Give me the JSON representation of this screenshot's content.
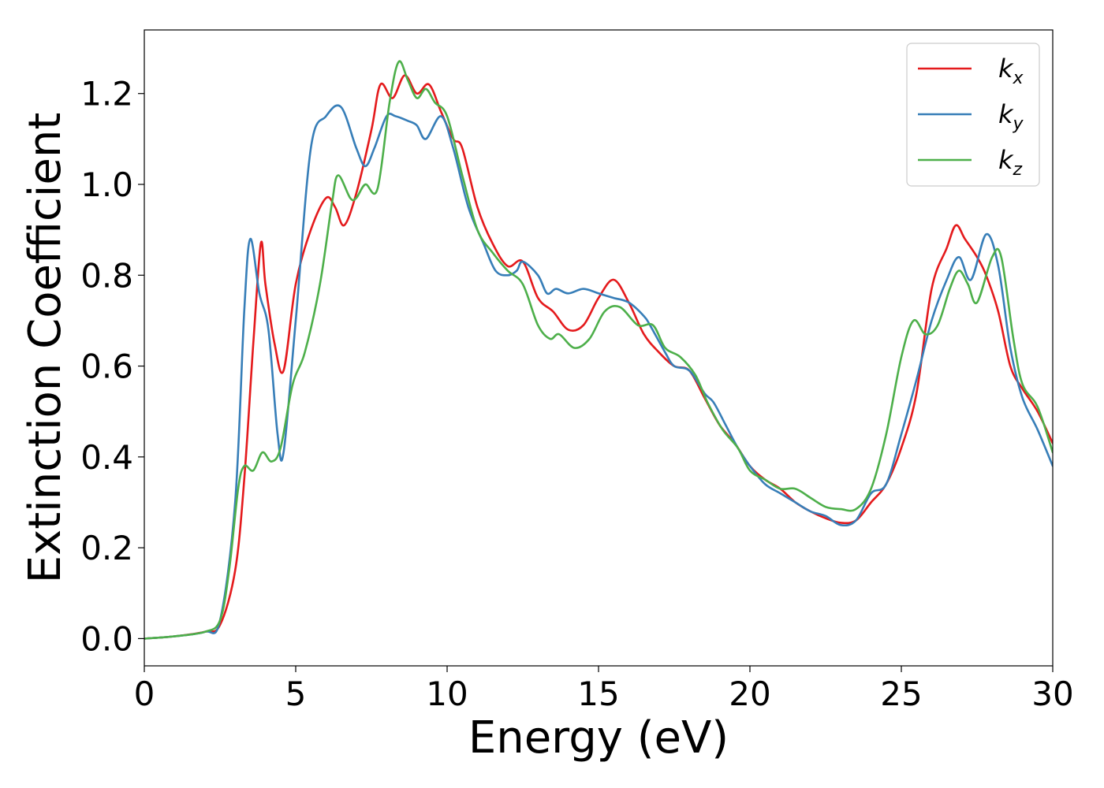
{
  "chart_data": {
    "type": "line",
    "title": "",
    "xlabel": "Energy (eV)",
    "ylabel": "Extinction Coefficient",
    "xlim": [
      0,
      30
    ],
    "ylim": [
      -0.06,
      1.34
    ],
    "xticks": [
      "0",
      "5",
      "10",
      "15",
      "20",
      "25",
      "30"
    ],
    "yticks": [
      "0.0",
      "0.2",
      "0.4",
      "0.6",
      "0.8",
      "1.0",
      "1.2"
    ],
    "grid": false,
    "legend_position": "top-right",
    "series": [
      {
        "name": "k",
        "subscript": "x",
        "color": "#e41a1c",
        "points": [
          [
            0,
            0
          ],
          [
            1,
            0.005
          ],
          [
            2,
            0.015
          ],
          [
            2.5,
            0.03
          ],
          [
            3,
            0.15
          ],
          [
            3.3,
            0.35
          ],
          [
            3.6,
            0.65
          ],
          [
            3.85,
            0.87
          ],
          [
            4.0,
            0.78
          ],
          [
            4.3,
            0.65
          ],
          [
            4.6,
            0.59
          ],
          [
            5.0,
            0.78
          ],
          [
            5.5,
            0.9
          ],
          [
            6.0,
            0.97
          ],
          [
            6.3,
            0.95
          ],
          [
            6.6,
            0.91
          ],
          [
            7.0,
            0.98
          ],
          [
            7.5,
            1.12
          ],
          [
            7.8,
            1.22
          ],
          [
            8.2,
            1.19
          ],
          [
            8.6,
            1.24
          ],
          [
            9.0,
            1.2
          ],
          [
            9.4,
            1.22
          ],
          [
            9.8,
            1.16
          ],
          [
            10.2,
            1.1
          ],
          [
            10.5,
            1.08
          ],
          [
            11.0,
            0.95
          ],
          [
            11.5,
            0.87
          ],
          [
            12.0,
            0.82
          ],
          [
            12.5,
            0.83
          ],
          [
            13.0,
            0.75
          ],
          [
            13.5,
            0.72
          ],
          [
            14.0,
            0.68
          ],
          [
            14.5,
            0.69
          ],
          [
            15.0,
            0.75
          ],
          [
            15.5,
            0.79
          ],
          [
            16.0,
            0.74
          ],
          [
            16.5,
            0.67
          ],
          [
            17.0,
            0.63
          ],
          [
            17.5,
            0.6
          ],
          [
            18.0,
            0.59
          ],
          [
            18.5,
            0.53
          ],
          [
            19.0,
            0.47
          ],
          [
            19.5,
            0.43
          ],
          [
            20.0,
            0.38
          ],
          [
            20.5,
            0.35
          ],
          [
            21.0,
            0.33
          ],
          [
            21.5,
            0.3
          ],
          [
            22.0,
            0.28
          ],
          [
            22.5,
            0.265
          ],
          [
            23.0,
            0.255
          ],
          [
            23.5,
            0.26
          ],
          [
            24.0,
            0.3
          ],
          [
            24.5,
            0.34
          ],
          [
            25.0,
            0.42
          ],
          [
            25.5,
            0.54
          ],
          [
            26.0,
            0.77
          ],
          [
            26.5,
            0.86
          ],
          [
            26.8,
            0.91
          ],
          [
            27.1,
            0.88
          ],
          [
            27.5,
            0.84
          ],
          [
            27.8,
            0.8
          ],
          [
            28.2,
            0.72
          ],
          [
            28.6,
            0.6
          ],
          [
            29.0,
            0.55
          ],
          [
            29.5,
            0.5
          ],
          [
            30.0,
            0.43
          ]
        ]
      },
      {
        "name": "k",
        "subscript": "y",
        "color": "#377eb8",
        "points": [
          [
            0,
            0
          ],
          [
            1,
            0.005
          ],
          [
            2,
            0.015
          ],
          [
            2.5,
            0.04
          ],
          [
            3,
            0.3
          ],
          [
            3.3,
            0.72
          ],
          [
            3.5,
            0.88
          ],
          [
            3.8,
            0.76
          ],
          [
            4.1,
            0.68
          ],
          [
            4.4,
            0.45
          ],
          [
            4.6,
            0.41
          ],
          [
            5.0,
            0.7
          ],
          [
            5.5,
            1.08
          ],
          [
            6.0,
            1.15
          ],
          [
            6.5,
            1.17
          ],
          [
            7.0,
            1.08
          ],
          [
            7.3,
            1.04
          ],
          [
            7.6,
            1.08
          ],
          [
            8.0,
            1.15
          ],
          [
            8.3,
            1.15
          ],
          [
            8.7,
            1.14
          ],
          [
            9.0,
            1.13
          ],
          [
            9.3,
            1.1
          ],
          [
            9.8,
            1.15
          ],
          [
            10.2,
            1.08
          ],
          [
            10.7,
            0.95
          ],
          [
            11.2,
            0.87
          ],
          [
            11.6,
            0.81
          ],
          [
            12.0,
            0.8
          ],
          [
            12.3,
            0.81
          ],
          [
            12.5,
            0.83
          ],
          [
            13.0,
            0.8
          ],
          [
            13.3,
            0.76
          ],
          [
            13.6,
            0.77
          ],
          [
            14.0,
            0.76
          ],
          [
            14.5,
            0.77
          ],
          [
            15.0,
            0.76
          ],
          [
            15.5,
            0.75
          ],
          [
            16.0,
            0.74
          ],
          [
            16.5,
            0.71
          ],
          [
            16.7,
            0.69
          ],
          [
            17.2,
            0.63
          ],
          [
            17.5,
            0.6
          ],
          [
            18.0,
            0.59
          ],
          [
            18.5,
            0.54
          ],
          [
            18.8,
            0.52
          ],
          [
            19.2,
            0.47
          ],
          [
            19.6,
            0.42
          ],
          [
            20.0,
            0.38
          ],
          [
            20.5,
            0.34
          ],
          [
            21.0,
            0.32
          ],
          [
            21.5,
            0.3
          ],
          [
            22.0,
            0.28
          ],
          [
            22.5,
            0.27
          ],
          [
            23.0,
            0.25
          ],
          [
            23.5,
            0.26
          ],
          [
            24.0,
            0.32
          ],
          [
            24.5,
            0.34
          ],
          [
            25.0,
            0.45
          ],
          [
            25.5,
            0.57
          ],
          [
            26.0,
            0.7
          ],
          [
            26.5,
            0.79
          ],
          [
            26.9,
            0.84
          ],
          [
            27.3,
            0.79
          ],
          [
            27.8,
            0.89
          ],
          [
            28.2,
            0.82
          ],
          [
            28.6,
            0.64
          ],
          [
            29.0,
            0.53
          ],
          [
            29.5,
            0.46
          ],
          [
            30.0,
            0.38
          ]
        ]
      },
      {
        "name": "k",
        "subscript": "z",
        "color": "#4daf4a",
        "points": [
          [
            0,
            0
          ],
          [
            1,
            0.005
          ],
          [
            2,
            0.015
          ],
          [
            2.5,
            0.04
          ],
          [
            2.8,
            0.15
          ],
          [
            3.1,
            0.33
          ],
          [
            3.3,
            0.38
          ],
          [
            3.6,
            0.37
          ],
          [
            3.9,
            0.41
          ],
          [
            4.2,
            0.39
          ],
          [
            4.5,
            0.42
          ],
          [
            4.9,
            0.56
          ],
          [
            5.3,
            0.63
          ],
          [
            5.8,
            0.78
          ],
          [
            6.2,
            0.96
          ],
          [
            6.4,
            1.02
          ],
          [
            6.8,
            0.97
          ],
          [
            7.0,
            0.97
          ],
          [
            7.3,
            1.0
          ],
          [
            7.7,
            0.99
          ],
          [
            8.1,
            1.18
          ],
          [
            8.4,
            1.27
          ],
          [
            8.7,
            1.23
          ],
          [
            9.0,
            1.19
          ],
          [
            9.3,
            1.21
          ],
          [
            9.6,
            1.18
          ],
          [
            10.0,
            1.15
          ],
          [
            10.5,
            1.02
          ],
          [
            11.0,
            0.9
          ],
          [
            11.5,
            0.85
          ],
          [
            12.0,
            0.81
          ],
          [
            12.5,
            0.78
          ],
          [
            13.0,
            0.69
          ],
          [
            13.4,
            0.66
          ],
          [
            13.7,
            0.67
          ],
          [
            14.2,
            0.64
          ],
          [
            14.7,
            0.66
          ],
          [
            15.2,
            0.72
          ],
          [
            15.7,
            0.73
          ],
          [
            16.3,
            0.69
          ],
          [
            16.8,
            0.69
          ],
          [
            17.2,
            0.64
          ],
          [
            17.7,
            0.62
          ],
          [
            18.2,
            0.58
          ],
          [
            18.6,
            0.52
          ],
          [
            19.1,
            0.46
          ],
          [
            19.6,
            0.42
          ],
          [
            20.0,
            0.37
          ],
          [
            20.5,
            0.35
          ],
          [
            21.0,
            0.33
          ],
          [
            21.5,
            0.33
          ],
          [
            22.0,
            0.31
          ],
          [
            22.5,
            0.29
          ],
          [
            23.0,
            0.285
          ],
          [
            23.5,
            0.285
          ],
          [
            24.0,
            0.33
          ],
          [
            24.5,
            0.45
          ],
          [
            25.0,
            0.62
          ],
          [
            25.4,
            0.7
          ],
          [
            25.8,
            0.67
          ],
          [
            26.2,
            0.69
          ],
          [
            26.6,
            0.77
          ],
          [
            26.9,
            0.81
          ],
          [
            27.2,
            0.78
          ],
          [
            27.5,
            0.74
          ],
          [
            28.0,
            0.84
          ],
          [
            28.3,
            0.84
          ],
          [
            28.7,
            0.66
          ],
          [
            29.0,
            0.56
          ],
          [
            29.5,
            0.51
          ],
          [
            30.0,
            0.41
          ]
        ]
      }
    ]
  }
}
